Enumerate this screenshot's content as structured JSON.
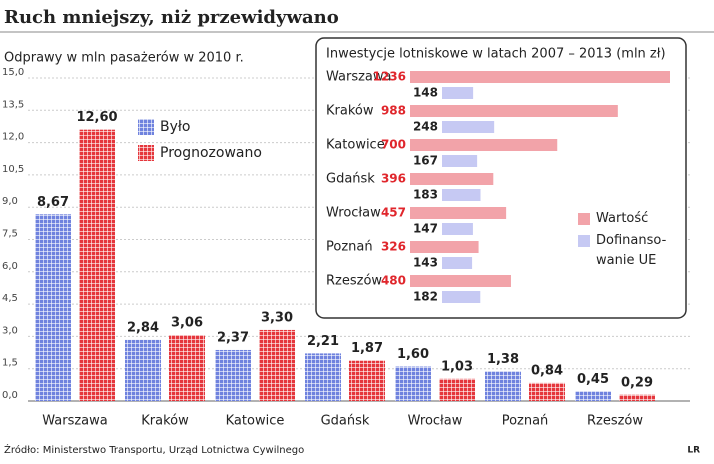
{
  "chart_data": [
    {
      "type": "bar",
      "title": "Ruch mniejszy, niż przewidywano",
      "subtitle": "Odprawy w mln pasażerów w 2010 r.",
      "categories": [
        "Warszawa",
        "Kraków",
        "Katowice",
        "Gdańsk",
        "Wrocław",
        "Poznań",
        "Rzeszów"
      ],
      "series": [
        {
          "name": "Było",
          "color": "#6f82de",
          "values": [
            8.67,
            2.84,
            2.37,
            2.21,
            1.6,
            1.38,
            0.45
          ],
          "value_labels": [
            "8,67",
            "2,84",
            "2,37",
            "2,21",
            "1,60",
            "1,38",
            "0,45"
          ]
        },
        {
          "name": "Prognozowano",
          "color": "#e5363c",
          "values": [
            12.6,
            3.06,
            3.3,
            1.87,
            1.03,
            0.84,
            0.29
          ],
          "value_labels": [
            "12,60",
            "3,06",
            "3,30",
            "1,87",
            "1,03",
            "0,84",
            "0,29"
          ]
        }
      ],
      "ylim": [
        0,
        15
      ],
      "yticks": [
        {
          "value": 0,
          "label": "0,0"
        },
        {
          "value": 1.5,
          "label": "1,5"
        },
        {
          "value": 3,
          "label": "3,0"
        },
        {
          "value": 4.5,
          "label": "4,5"
        },
        {
          "value": 6,
          "label": "6,0"
        },
        {
          "value": 7.5,
          "label": "7,5"
        },
        {
          "value": 9,
          "label": "9,0"
        },
        {
          "value": 10.5,
          "label": "10,5"
        },
        {
          "value": 12,
          "label": "12,0"
        },
        {
          "value": 13.5,
          "label": "13,5"
        },
        {
          "value": 15,
          "label": "15,0"
        }
      ],
      "grid": true
    },
    {
      "type": "hbar",
      "title": "Inwestycje lotniskowe w latach 2007 – 2013 (mln zł)",
      "categories": [
        "Warszawa",
        "Kraków",
        "Katowice",
        "Gdańsk",
        "Wrocław",
        "Poznań",
        "Rzeszów"
      ],
      "series": [
        {
          "name": "Wartość",
          "color": "#f2a3a9",
          "label_color": "#e0262c",
          "values": [
            1236,
            988,
            700,
            396,
            457,
            326,
            480
          ]
        },
        {
          "name": "Dofinanso-\nwanie UE",
          "color": "#c6c9f3",
          "label_color": "#222222",
          "values": [
            148,
            248,
            167,
            183,
            147,
            143,
            182
          ]
        }
      ]
    }
  ],
  "source": "Źródło: Ministerstwo Transportu, Urząd Lotnictwa Cywilnego",
  "credit": "LR"
}
